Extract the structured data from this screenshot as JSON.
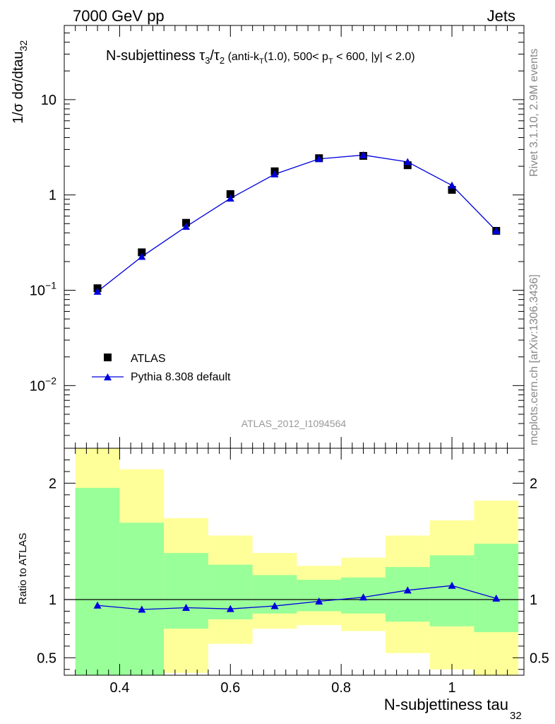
{
  "header": {
    "left": "7000 GeV pp",
    "right": "Jets"
  },
  "side_labels": {
    "rivet": "Rivet 3.1.10,  2.9M events",
    "mcplots": "mcplots.cern.ch [arXiv:1306.3436]"
  },
  "analysis_id": "ATLAS_2012_I1094564",
  "title": {
    "prefix": "N-subjettiness ",
    "tau": "τ",
    "num_sub": "3",
    "slash": "/",
    "den_sub": "2",
    "cuts_a": " (anti-k",
    "cuts_a_sub": "T",
    "cuts_b": "(1.0), 500< p",
    "cuts_b_sub": "T",
    "cuts_c": " < 600, |y| < 2.0)"
  },
  "axes": {
    "ylabel_main": "1/σ dσ/dtau",
    "ylabel_main_sub": "32",
    "ylabel_ratio": "Ratio to ATLAS",
    "xlabel": "N-subjettiness tau",
    "xlabel_sub": "32"
  },
  "legend": {
    "data": "ATLAS",
    "mc": "Pythia 8.308 default"
  },
  "colors": {
    "data": "#000000",
    "mc": "#0000dd",
    "band_inner": "#99ff99",
    "band_outer": "#ffff99"
  },
  "chart_data": {
    "type": "scatter",
    "x_range": [
      0.3,
      1.13
    ],
    "main": {
      "yscale": "log",
      "ylim": [
        0.0022,
        60
      ],
      "yticks": [
        {
          "value": 0.01,
          "base": "10",
          "exp": "−2"
        },
        {
          "value": 0.1,
          "base": "10",
          "exp": "−1"
        },
        {
          "value": 1,
          "base": "1",
          "exp": ""
        },
        {
          "value": 10,
          "base": "10",
          "exp": ""
        }
      ],
      "series": [
        {
          "name": "ATLAS",
          "marker": "square",
          "x": [
            0.36,
            0.44,
            0.52,
            0.6,
            0.68,
            0.76,
            0.84,
            0.92,
            1.0,
            1.08
          ],
          "y": [
            0.105,
            0.25,
            0.51,
            1.02,
            1.77,
            2.43,
            2.57,
            2.05,
            1.13,
            0.42
          ]
        },
        {
          "name": "Pythia 8.308 default",
          "marker": "triangle",
          "x": [
            0.36,
            0.44,
            0.52,
            0.6,
            0.68,
            0.76,
            0.84,
            0.92,
            1.0,
            1.08
          ],
          "y": [
            0.097,
            0.225,
            0.465,
            0.92,
            1.65,
            2.39,
            2.62,
            2.22,
            1.26,
            0.42
          ]
        }
      ]
    },
    "ratio": {
      "yscale": "linear",
      "ylim": [
        0.35,
        2.3
      ],
      "yticks": [
        0.5,
        1,
        2
      ],
      "reference": 1,
      "bins": [
        {
          "x0": 0.32,
          "x1": 0.4,
          "inner": [
            0.35,
            1.96
          ],
          "outer": [
            0.35,
            2.3
          ]
        },
        {
          "x0": 0.4,
          "x1": 0.48,
          "inner": [
            0.35,
            1.66
          ],
          "outer": [
            0.42,
            2.12
          ]
        },
        {
          "x0": 0.48,
          "x1": 0.56,
          "inner": [
            0.75,
            1.4
          ],
          "outer": [
            0.37,
            1.7
          ]
        },
        {
          "x0": 0.56,
          "x1": 0.64,
          "inner": [
            0.83,
            1.3
          ],
          "outer": [
            0.62,
            1.55
          ]
        },
        {
          "x0": 0.64,
          "x1": 0.72,
          "inner": [
            0.88,
            1.21
          ],
          "outer": [
            0.75,
            1.4
          ]
        },
        {
          "x0": 0.72,
          "x1": 0.8,
          "inner": [
            0.9,
            1.17
          ],
          "outer": [
            0.78,
            1.29
          ]
        },
        {
          "x0": 0.8,
          "x1": 0.88,
          "inner": [
            0.88,
            1.19
          ],
          "outer": [
            0.73,
            1.36
          ]
        },
        {
          "x0": 0.88,
          "x1": 0.96,
          "inner": [
            0.81,
            1.28
          ],
          "outer": [
            0.54,
            1.55
          ]
        },
        {
          "x0": 0.96,
          "x1": 1.04,
          "inner": [
            0.77,
            1.38
          ],
          "outer": [
            0.4,
            1.68
          ]
        },
        {
          "x0": 1.04,
          "x1": 1.12,
          "inner": [
            0.72,
            1.48
          ],
          "outer": [
            0.35,
            1.85
          ]
        }
      ],
      "mc": {
        "x": [
          0.36,
          0.44,
          0.52,
          0.6,
          0.68,
          0.76,
          0.84,
          0.92,
          1.0,
          1.08
        ],
        "y": [
          0.95,
          0.915,
          0.93,
          0.92,
          0.945,
          0.985,
          1.02,
          1.08,
          1.12,
          1.01
        ]
      }
    },
    "xticks": [
      {
        "value": 0.4,
        "label": "0.4"
      },
      {
        "value": 0.6,
        "label": "0.6"
      },
      {
        "value": 0.8,
        "label": "0.8"
      },
      {
        "value": 1.0,
        "label": "1"
      }
    ]
  }
}
